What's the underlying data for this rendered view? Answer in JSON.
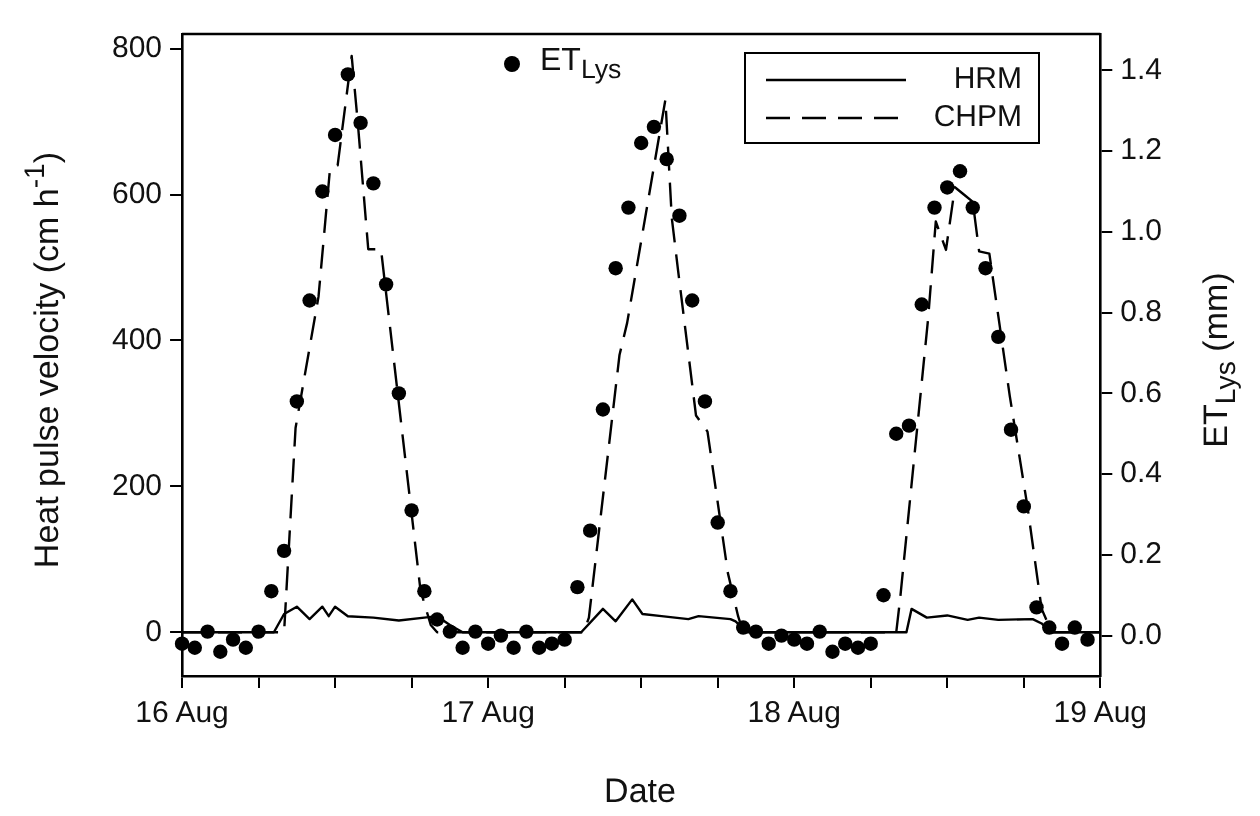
{
  "chart_data": {
    "type": "line",
    "xlabel": "Date",
    "ylabel": "Heat pulse velocity (cm h$^{-1}$)",
    "y2label": "ET$_{Lys}$ (mm)",
    "xlim": [
      "--08-16T00:00",
      "--08-19T00:00"
    ],
    "xticks": [
      {
        "value": "--08-16T00:00",
        "label": "16 Aug"
      },
      {
        "value": "--08-16T06:00",
        "label": null
      },
      {
        "value": "--08-16T12:00",
        "label": null
      },
      {
        "value": "--08-16T18:00",
        "label": null
      },
      {
        "value": "--08-17T00:00",
        "label": "17 Aug"
      },
      {
        "value": "--08-17T06:00",
        "label": null
      },
      {
        "value": "--08-17T12:00",
        "label": null
      },
      {
        "value": "--08-17T18:00",
        "label": null
      },
      {
        "value": "--08-18T00:00",
        "label": "18 Aug"
      },
      {
        "value": "--08-18T06:00",
        "label": null
      },
      {
        "value": "--08-18T12:00",
        "label": null
      },
      {
        "value": "--08-18T18:00",
        "label": null
      },
      {
        "value": "--08-19T00:00",
        "label": "19 Aug"
      }
    ],
    "ylim": [
      -60,
      820
    ],
    "yticks": [
      0,
      200,
      400,
      600,
      800
    ],
    "y2lim": [
      -0.1,
      1.49
    ],
    "y2ticks": [
      {
        "value": 0,
        "label": "0.0"
      },
      {
        "value": 0.2,
        "label": "0.2"
      },
      {
        "value": 0.4,
        "label": "0.4"
      },
      {
        "value": 0.6,
        "label": "0.6"
      },
      {
        "value": 0.8,
        "label": "0.8"
      },
      {
        "value": 1,
        "label": "1.0"
      },
      {
        "value": 1.2,
        "label": "1.2"
      },
      {
        "value": 1.4,
        "label": "1.4"
      }
    ],
    "grid": false,
    "legend": "top right",
    "series": [
      {
        "name": "HRM",
        "line_style": "solid",
        "marker": "none",
        "color": "#000000",
        "x": [
          "--08-16T00:00",
          "--08-16T07:12",
          "--08-16T08:00",
          "--08-16T09:00",
          "--08-16T10:00",
          "--08-16T11:00",
          "--08-16T11:30",
          "--08-16T12:00",
          "--08-16T13:00",
          "--08-16T15:00",
          "--08-16T17:00",
          "--08-16T19:00",
          "--08-16T20:00",
          "--08-16T21:00",
          "--08-16T22:00",
          "--08-17T07:18",
          "--08-17T09:00",
          "--08-17T10:00",
          "--08-17T11:18",
          "--08-17T12:06",
          "--08-17T13:36",
          "--08-17T15:42",
          "--08-17T16:30",
          "--08-17T19:00",
          "--08-17T19:24",
          "--08-17T20:18",
          "--08-18T08:48",
          "--08-18T09:12",
          "--08-18T10:24",
          "--08-18T12:00",
          "--08-18T13:36",
          "--08-18T14:30",
          "--08-18T16:00",
          "--08-18T18:42",
          "--08-18T19:24",
          "--08-18T20:06",
          "--08-19T00:00"
        ],
        "values": [
          0,
          0,
          25,
          35,
          18,
          35,
          22,
          35,
          22,
          20,
          16,
          20,
          22,
          10,
          0,
          0,
          32,
          15,
          45,
          25,
          22,
          18,
          22,
          18,
          15,
          0,
          0,
          32,
          20,
          23,
          17,
          20,
          17,
          18,
          12,
          0,
          0
        ]
      },
      {
        "name": "CHPM",
        "line_style": "dashed",
        "marker": "none",
        "color": "#000000",
        "x": [
          "--08-16T00:00",
          "--08-16T08:00",
          "--08-16T08:54",
          "--08-16T10:42",
          "--08-16T11:36",
          "--08-16T12:12",
          "--08-16T13:18",
          "--08-16T13:48",
          "--08-16T14:36",
          "--08-16T15:36",
          "--08-16T18:42",
          "--08-16T19:30",
          "--08-16T20:00",
          "--08-17T07:30",
          "--08-17T07:54",
          "--08-17T10:18",
          "--08-17T10:54",
          "--08-17T13:54",
          "--08-17T14:24",
          "--08-17T14:54",
          "--08-17T16:18",
          "--08-17T17:12",
          "--08-17T18:48",
          "--08-17T19:36",
          "--08-17T20:00",
          "--08-18T08:00",
          "--08-18T08:18",
          "--08-18T10:30",
          "--08-18T11:06",
          "--08-18T11:54",
          "--08-18T12:36",
          "--08-18T13:18",
          "--08-18T14:00",
          "--08-18T14:30",
          "--08-18T15:18",
          "--08-18T16:54",
          "--08-18T18:18",
          "--08-18T19:24",
          "--08-18T20:12",
          "--08-19T00:00"
        ],
        "values": [
          0,
          0,
          280,
          460,
          635,
          640,
          790,
          694,
          525,
          525,
          57,
          10,
          0,
          0,
          20,
          380,
          424,
          730,
          568,
          495,
          297,
          275,
          81,
          22,
          0,
          0,
          45,
          430,
          563,
          524,
          610,
          600,
          590,
          522,
          519,
          324,
          171,
          32,
          0,
          0
        ]
      },
      {
        "name": "ET$_{Lys}$",
        "type": "scatter",
        "axis": "y2",
        "marker": "circle",
        "color": "#000000",
        "x": [
          "--08-16T00:00",
          "--08-16T01:00",
          "--08-16T02:00",
          "--08-16T03:00",
          "--08-16T04:00",
          "--08-16T05:00",
          "--08-16T06:00",
          "--08-16T07:00",
          "--08-16T08:00",
          "--08-16T09:00",
          "--08-16T10:00",
          "--08-16T11:00",
          "--08-16T12:00",
          "--08-16T13:00",
          "--08-16T14:00",
          "--08-16T15:00",
          "--08-16T16:00",
          "--08-16T17:00",
          "--08-16T18:00",
          "--08-16T19:00",
          "--08-16T20:00",
          "--08-16T21:00",
          "--08-16T22:00",
          "--08-16T23:00",
          "--08-17T00:00",
          "--08-17T01:00",
          "--08-17T02:00",
          "--08-17T03:00",
          "--08-17T04:00",
          "--08-17T05:00",
          "--08-17T06:00",
          "--08-17T07:00",
          "--08-17T08:00",
          "--08-17T09:00",
          "--08-17T10:00",
          "--08-17T11:00",
          "--08-17T12:00",
          "--08-17T13:00",
          "--08-17T14:00",
          "--08-17T15:00",
          "--08-17T16:00",
          "--08-17T17:00",
          "--08-17T18:00",
          "--08-17T19:00",
          "--08-17T20:00",
          "--08-17T21:00",
          "--08-17T22:00",
          "--08-17T23:00",
          "--08-18T00:00",
          "--08-18T01:00",
          "--08-18T02:00",
          "--08-18T03:00",
          "--08-18T04:00",
          "--08-18T05:00",
          "--08-18T06:00",
          "--08-18T07:00",
          "--08-18T08:00",
          "--08-18T09:00",
          "--08-18T10:00",
          "--08-18T11:00",
          "--08-18T12:00",
          "--08-18T13:00",
          "--08-18T14:00",
          "--08-18T15:00",
          "--08-18T16:00",
          "--08-18T17:00",
          "--08-18T18:00",
          "--08-18T19:00",
          "--08-18T20:00",
          "--08-18T21:00",
          "--08-18T22:00",
          "--08-18T23:00"
        ],
        "values": [
          -0.02,
          -0.03,
          0.01,
          -0.04,
          -0.01,
          -0.03,
          0.01,
          0.11,
          0.21,
          0.58,
          0.83,
          1.1,
          1.24,
          1.39,
          1.27,
          1.12,
          0.87,
          0.6,
          0.31,
          0.11,
          0.04,
          0.01,
          -0.03,
          0.01,
          -0.02,
          0.0,
          -0.03,
          0.01,
          -0.03,
          -0.02,
          -0.01,
          0.12,
          0.26,
          0.56,
          0.91,
          1.06,
          1.22,
          1.26,
          1.18,
          1.04,
          0.83,
          0.58,
          0.28,
          0.11,
          0.02,
          0.01,
          -0.02,
          0.0,
          -0.01,
          -0.02,
          0.01,
          -0.04,
          -0.02,
          -0.03,
          -0.02,
          0.1,
          0.5,
          0.52,
          0.82,
          1.06,
          1.11,
          1.15,
          1.06,
          0.91,
          0.74,
          0.51,
          0.32,
          0.07,
          0.02,
          -0.02,
          0.02,
          -0.01
        ]
      }
    ]
  }
}
